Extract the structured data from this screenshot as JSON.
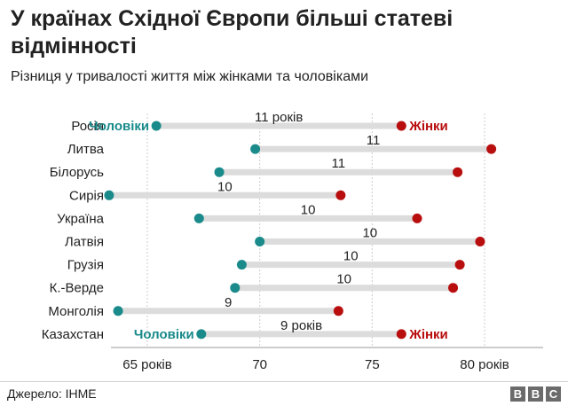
{
  "header": {
    "title": "У країнах Східної Європи більші статеві відмінності",
    "subtitle": "Різниця у тривалості життя між жінками та чоловіками"
  },
  "footer": {
    "source": "Джерело: IHME",
    "logo": [
      "B",
      "B",
      "C"
    ]
  },
  "colors": {
    "men": "#1a8a8a",
    "women": "#b80e0e",
    "bar": "#dcdcdc",
    "grid": "#cccccc",
    "text": "#222222"
  },
  "chart_data": {
    "type": "dumbbell",
    "x_range": [
      59,
      83
    ],
    "x_ticks": [
      {
        "value": 65,
        "label": "65 років"
      },
      {
        "value": 70,
        "label": "70"
      },
      {
        "value": 75,
        "label": "75"
      },
      {
        "value": 80,
        "label": "80 років"
      }
    ],
    "series_labels": {
      "men": "Чоловіки",
      "women": "Жінки"
    },
    "rows": [
      {
        "country": "Росія",
        "men": 65.4,
        "women": 76.3,
        "diff_label": "11 років"
      },
      {
        "country": "Литва",
        "men": 69.8,
        "women": 80.3,
        "diff_label": "11"
      },
      {
        "country": "Білорусь",
        "men": 68.2,
        "women": 78.8,
        "diff_label": "11"
      },
      {
        "country": "Сирія",
        "men": 63.3,
        "women": 73.6,
        "diff_label": "10"
      },
      {
        "country": "Україна",
        "men": 67.3,
        "women": 77.0,
        "diff_label": "10"
      },
      {
        "country": "Латвія",
        "men": 70.0,
        "women": 79.8,
        "diff_label": "10"
      },
      {
        "country": "Грузія",
        "men": 69.2,
        "women": 78.9,
        "diff_label": "10"
      },
      {
        "country": "К.-Верде",
        "men": 68.9,
        "women": 78.6,
        "diff_label": "10"
      },
      {
        "country": "Монголія",
        "men": 63.7,
        "women": 73.5,
        "diff_label": "9"
      },
      {
        "country": "Казахстан",
        "men": 67.4,
        "women": 76.3,
        "diff_label": "9 років"
      }
    ]
  }
}
